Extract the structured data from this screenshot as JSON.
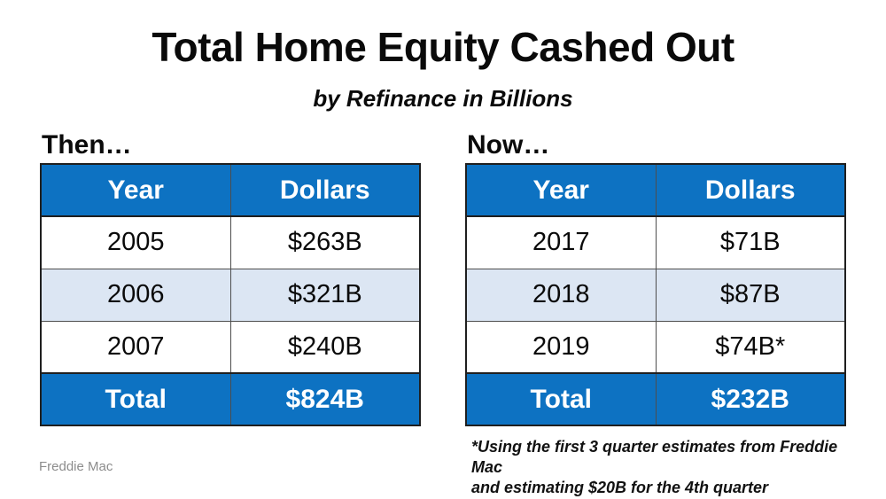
{
  "slide": {
    "title": "Total Home Equity Cashed Out",
    "subtitle": "by Refinance in Billions",
    "source": "Freddie Mac",
    "footnote_lines": [
      "*Using the first 3 quarter estimates from Freddie Mac",
      "and estimating $20B for the 4th quarter"
    ]
  },
  "colors": {
    "header_blue": "#0d72c2",
    "alt_row_blue": "#dce6f3",
    "border_dark": "#1f1f1f",
    "source_gray": "#8c8c8c"
  },
  "tables": [
    {
      "label": "Then…",
      "headers": [
        "Year",
        "Dollars"
      ],
      "rows": [
        [
          "2005",
          "$263B"
        ],
        [
          "2006",
          "$321B"
        ],
        [
          "2007",
          "$240B"
        ]
      ],
      "total": [
        "Total",
        "$824B"
      ]
    },
    {
      "label": "Now…",
      "headers": [
        "Year",
        "Dollars"
      ],
      "rows": [
        [
          "2017",
          "$71B"
        ],
        [
          "2018",
          "$87B"
        ],
        [
          "2019",
          "$74B*"
        ]
      ],
      "total": [
        "Total",
        "$232B"
      ]
    }
  ],
  "chart_data": [
    {
      "type": "table",
      "title": "Then…",
      "columns": [
        "Year",
        "Dollars"
      ],
      "rows": [
        [
          "2005",
          "$263B"
        ],
        [
          "2006",
          "$321B"
        ],
        [
          "2007",
          "$240B"
        ],
        [
          "Total",
          "$824B"
        ]
      ],
      "values_billions": {
        "2005": 263,
        "2006": 321,
        "2007": 240,
        "total": 824
      }
    },
    {
      "type": "table",
      "title": "Now…",
      "columns": [
        "Year",
        "Dollars"
      ],
      "rows": [
        [
          "2017",
          "$71B"
        ],
        [
          "2018",
          "$87B"
        ],
        [
          "2019",
          "$74B*"
        ],
        [
          "Total",
          "$232B"
        ]
      ],
      "values_billions": {
        "2017": 71,
        "2018": 87,
        "2019": 74,
        "total": 232
      },
      "note": "*Using the first 3 quarter estimates from Freddie Mac and estimating $20B for the 4th quarter"
    }
  ]
}
